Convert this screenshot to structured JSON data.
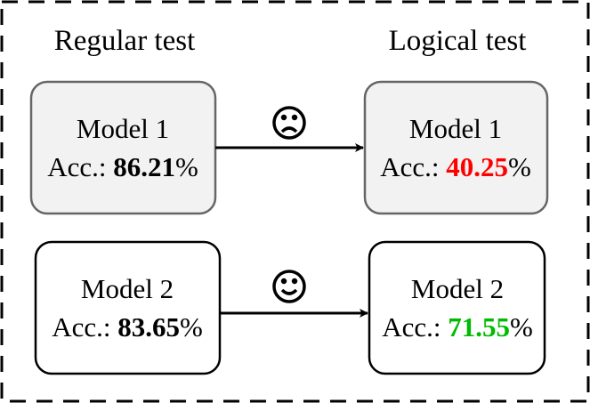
{
  "headers": {
    "left": "Regular test",
    "right": "Logical test"
  },
  "rows": [
    {
      "regular": {
        "model": "Model 1",
        "acc_label": "Acc.:",
        "acc": 86.21,
        "unit": "%"
      },
      "logical": {
        "model": "Model 1",
        "acc_label": "Acc.:",
        "acc": 40.25,
        "unit": "%"
      }
    },
    {
      "regular": {
        "model": "Model 2",
        "acc_label": "Acc.:",
        "acc": 83.65,
        "unit": "%"
      },
      "logical": {
        "model": "Model 2",
        "acc_label": "Acc.:",
        "acc": 71.55,
        "unit": "%"
      }
    }
  ]
}
